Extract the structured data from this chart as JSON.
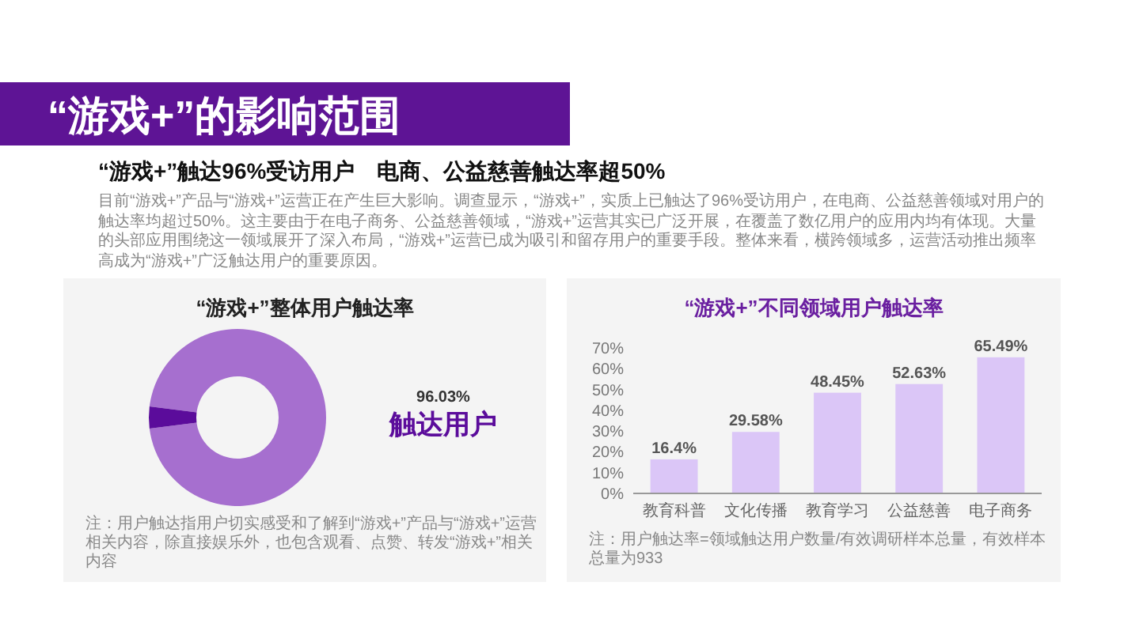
{
  "chart_data": [
    {
      "type": "other",
      "title": "“游戏+”的影响范围",
      "subtitle": "“游戏+”触达96%受访用户　电商、公益慈善触达率超50%",
      "annotations": [
        "目前“游戏+”产品与“游戏+”运营正在产生巨大影响。调查显示，“游戏+”，实质上已触达了96%受访用户，在电商、公益慈善领域对用户的触达率均超过50%。这主要由于在电子商务、公益慈善领域，“游戏+”运营其实已广泛开展，在覆盖了数亿用户的应用内均有体现。大量的头部应用围绕这一领域展开了深入布局，“游戏+”运营已成为吸引和留存用户的重要手段。整体来看，横跨领域多，运营活动推出频率高成为“游戏+”广泛触达用户的重要原因。"
      ]
    },
    {
      "type": "donut",
      "title": "“游戏+”整体用户触达率",
      "categories": [
        "触达用户",
        null
      ],
      "values": [
        96.03,
        3.97
      ],
      "colors": [
        "#a66fcf",
        "#5b0c9b"
      ],
      "value_labels": [
        "96.03%",
        null
      ],
      "annotations": [
        "注：用户触达指用户切实感受和了解到“游戏+”产品与“游戏+”运营相关内容，除直接娱乐外，也包含观看、点赞、转发“游戏+”相关内容"
      ]
    },
    {
      "type": "bar",
      "title": "“游戏+”不同领域用户触达率",
      "categories": [
        "教育科普",
        "文化传播",
        "教育学习",
        "公益慈善",
        "电子商务"
      ],
      "values": [
        16.4,
        29.58,
        48.45,
        52.63,
        65.49
      ],
      "color": "#dbc6f7",
      "ylim": [
        0,
        70
      ],
      "yticks": [
        {
          "value": 0,
          "label": "0%"
        },
        {
          "value": 10,
          "label": "10%"
        },
        {
          "value": 20,
          "label": "20%"
        },
        {
          "value": 30,
          "label": "30%"
        },
        {
          "value": 40,
          "label": "40%"
        },
        {
          "value": 50,
          "label": "50%"
        },
        {
          "value": 60,
          "label": "60%"
        },
        {
          "value": 70,
          "label": "70%"
        }
      ],
      "value_labels": [
        "16.4%",
        "29.58%",
        "48.45%",
        "52.63%",
        "65.49%"
      ],
      "annotations": [
        "注：用户触达率=领域触达用户数量/有效调研样本总量，有效样本总量为933"
      ]
    }
  ]
}
